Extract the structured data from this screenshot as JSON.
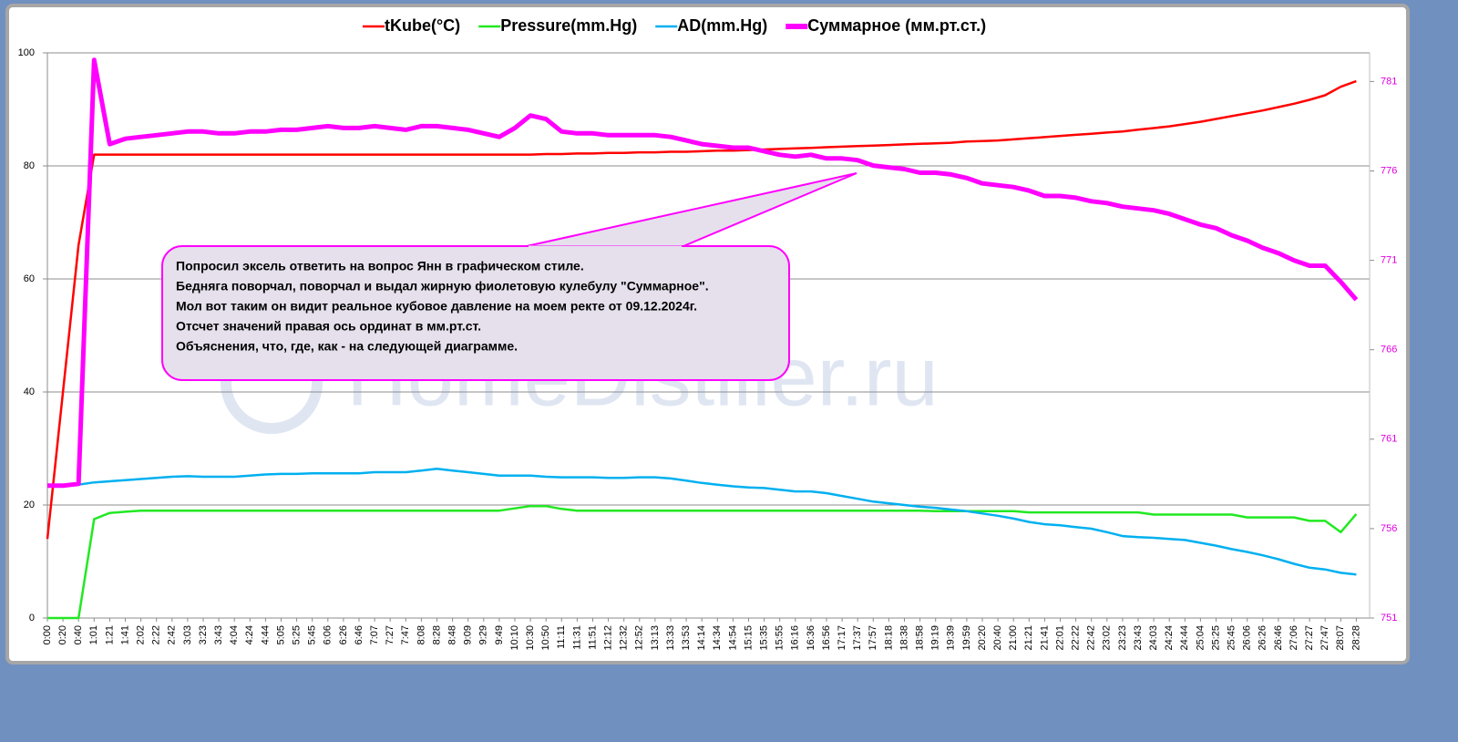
{
  "chart_data": {
    "type": "line",
    "watermark": "HomeDistiller.ru",
    "annotations": [
      "Попросил эксель  ответить на вопрос  Янн в графическом  стиле.",
      "Бедняга поворчал,  поворчал  и выдал жирную фиолетовую кулебулу \"Суммарное\".",
      "Мол вот таким он видит реальное  кубовое  давление на моем  ректе от 09.12.2024г.",
      "Отсчет значений  правая ось ординат  в мм.рт.ст.",
      "Объяснения, что, где, как - на следующей диаграмме."
    ],
    "categories": [
      "0:00",
      "0:20",
      "0:40",
      "1:01",
      "1:21",
      "1:41",
      "2:02",
      "2:22",
      "2:42",
      "3:03",
      "3:23",
      "3:43",
      "4:04",
      "4:24",
      "4:44",
      "5:05",
      "5:25",
      "5:45",
      "6:06",
      "6:26",
      "6:46",
      "7:07",
      "7:27",
      "7:47",
      "8:08",
      "8:28",
      "8:48",
      "9:09",
      "9:29",
      "9:49",
      "10:10",
      "10:30",
      "10:50",
      "11:11",
      "11:31",
      "11:51",
      "12:12",
      "12:32",
      "12:52",
      "13:13",
      "13:33",
      "13:53",
      "14:14",
      "14:34",
      "14:54",
      "15:15",
      "15:35",
      "15:55",
      "16:16",
      "16:36",
      "16:56",
      "17:17",
      "17:37",
      "17:57",
      "18:18",
      "18:38",
      "18:58",
      "19:19",
      "19:39",
      "19:59",
      "20:20",
      "20:40",
      "21:00",
      "21:21",
      "21:41",
      "22:01",
      "22:22",
      "22:42",
      "23:02",
      "23:23",
      "23:43",
      "24:03",
      "24:24",
      "24:44",
      "25:04",
      "25:25",
      "25:45",
      "26:06",
      "26:26",
      "26:46",
      "27:06",
      "27:27",
      "27:47",
      "28:07",
      "28:28"
    ],
    "ylim": [
      0,
      100
    ],
    "yticks": [
      0,
      20,
      40,
      60,
      80,
      100
    ],
    "y2lim": [
      751,
      782.6
    ],
    "y2ticks": [
      751,
      756,
      761,
      766,
      771,
      776,
      781
    ],
    "grid": true,
    "series": [
      {
        "name": "tKube(°C)",
        "color": "#ff0000",
        "values": [
          14,
          40,
          66,
          82,
          82,
          82,
          82,
          82,
          82,
          82,
          82,
          82,
          82,
          82,
          82,
          82,
          82,
          82,
          82,
          82,
          82,
          82,
          82,
          82,
          82,
          82,
          82,
          82,
          82,
          82,
          82,
          82,
          82.1,
          82.1,
          82.2,
          82.2,
          82.3,
          82.3,
          82.4,
          82.4,
          82.5,
          82.5,
          82.6,
          82.7,
          82.7,
          82.8,
          82.9,
          83,
          83.1,
          83.2,
          83.3,
          83.4,
          83.5,
          83.6,
          83.7,
          83.8,
          83.9,
          84,
          84.1,
          84.3,
          84.4,
          84.5,
          84.7,
          84.9,
          85.1,
          85.3,
          85.5,
          85.7,
          85.9,
          86.1,
          86.4,
          86.7,
          87,
          87.4,
          87.8,
          88.3,
          88.8,
          89.3,
          89.8,
          90.4,
          91,
          91.7,
          92.5,
          94,
          95
        ]
      },
      {
        "name": "Pressure(mm.Hg)",
        "color": "#22e822",
        "values": [
          0,
          0,
          0,
          17.5,
          18.6,
          18.8,
          19,
          19,
          19,
          19,
          19,
          19,
          19,
          19,
          19,
          19,
          19,
          19,
          19,
          19,
          19,
          19,
          19,
          19,
          19,
          19,
          19,
          19,
          19,
          19,
          19.4,
          19.8,
          19.8,
          19.3,
          19,
          19,
          19,
          19,
          19,
          19,
          19,
          19,
          19,
          19,
          19,
          19,
          19,
          19,
          19,
          19,
          19,
          19,
          19,
          19,
          19,
          19,
          19,
          18.9,
          18.9,
          18.9,
          18.9,
          18.9,
          18.9,
          18.7,
          18.7,
          18.7,
          18.7,
          18.7,
          18.7,
          18.7,
          18.7,
          18.3,
          18.3,
          18.3,
          18.3,
          18.3,
          18.3,
          17.8,
          17.8,
          17.8,
          17.8,
          17.2,
          17.2,
          15.2,
          18.4
        ]
      },
      {
        "name": "AD(mm.Hg)",
        "color": "#00b0f0",
        "values": [
          23.5,
          23.5,
          23.6,
          24,
          24.2,
          24.4,
          24.6,
          24.8,
          25,
          25.1,
          25,
          25,
          25,
          25.2,
          25.4,
          25.5,
          25.5,
          25.6,
          25.6,
          25.6,
          25.6,
          25.8,
          25.8,
          25.8,
          26.1,
          26.4,
          26.1,
          25.8,
          25.5,
          25.2,
          25.2,
          25.2,
          25,
          24.9,
          24.9,
          24.9,
          24.8,
          24.8,
          24.9,
          24.9,
          24.7,
          24.3,
          23.9,
          23.6,
          23.3,
          23.1,
          23,
          22.7,
          22.4,
          22.4,
          22.1,
          21.6,
          21.1,
          20.6,
          20.3,
          20,
          19.7,
          19.5,
          19.2,
          18.9,
          18.5,
          18.1,
          17.6,
          17,
          16.6,
          16.4,
          16.1,
          15.8,
          15.2,
          14.5,
          14.3,
          14.2,
          14,
          13.8,
          13.3,
          12.8,
          12.2,
          11.7,
          11.1,
          10.4,
          9.6,
          8.9,
          8.6,
          8,
          7.7
        ]
      },
      {
        "name": "Суммарное (мм.рт.ст.)",
        "color": "#ff00ff",
        "axis": "y2",
        "values": [
          758.4,
          758.4,
          758.5,
          782.2,
          777.5,
          777.8,
          777.9,
          778,
          778.1,
          778.2,
          778.2,
          778.1,
          778.1,
          778.2,
          778.2,
          778.3,
          778.3,
          778.4,
          778.5,
          778.4,
          778.4,
          778.5,
          778.4,
          778.3,
          778.5,
          778.5,
          778.4,
          778.3,
          778.1,
          777.9,
          778.4,
          779.1,
          778.9,
          778.2,
          778.1,
          778.1,
          778,
          778,
          778,
          778,
          777.9,
          777.7,
          777.5,
          777.4,
          777.3,
          777.3,
          777.1,
          776.9,
          776.8,
          776.9,
          776.7,
          776.7,
          776.6,
          776.3,
          776.2,
          776.1,
          775.9,
          775.9,
          775.8,
          775.6,
          775.3,
          775.2,
          775.1,
          774.9,
          774.6,
          774.6,
          774.5,
          774.3,
          774.2,
          774,
          773.9,
          773.8,
          773.6,
          773.3,
          773,
          772.8,
          772.4,
          772.1,
          771.7,
          771.4,
          771,
          770.7,
          770.7,
          769.8,
          768.8
        ]
      }
    ]
  }
}
